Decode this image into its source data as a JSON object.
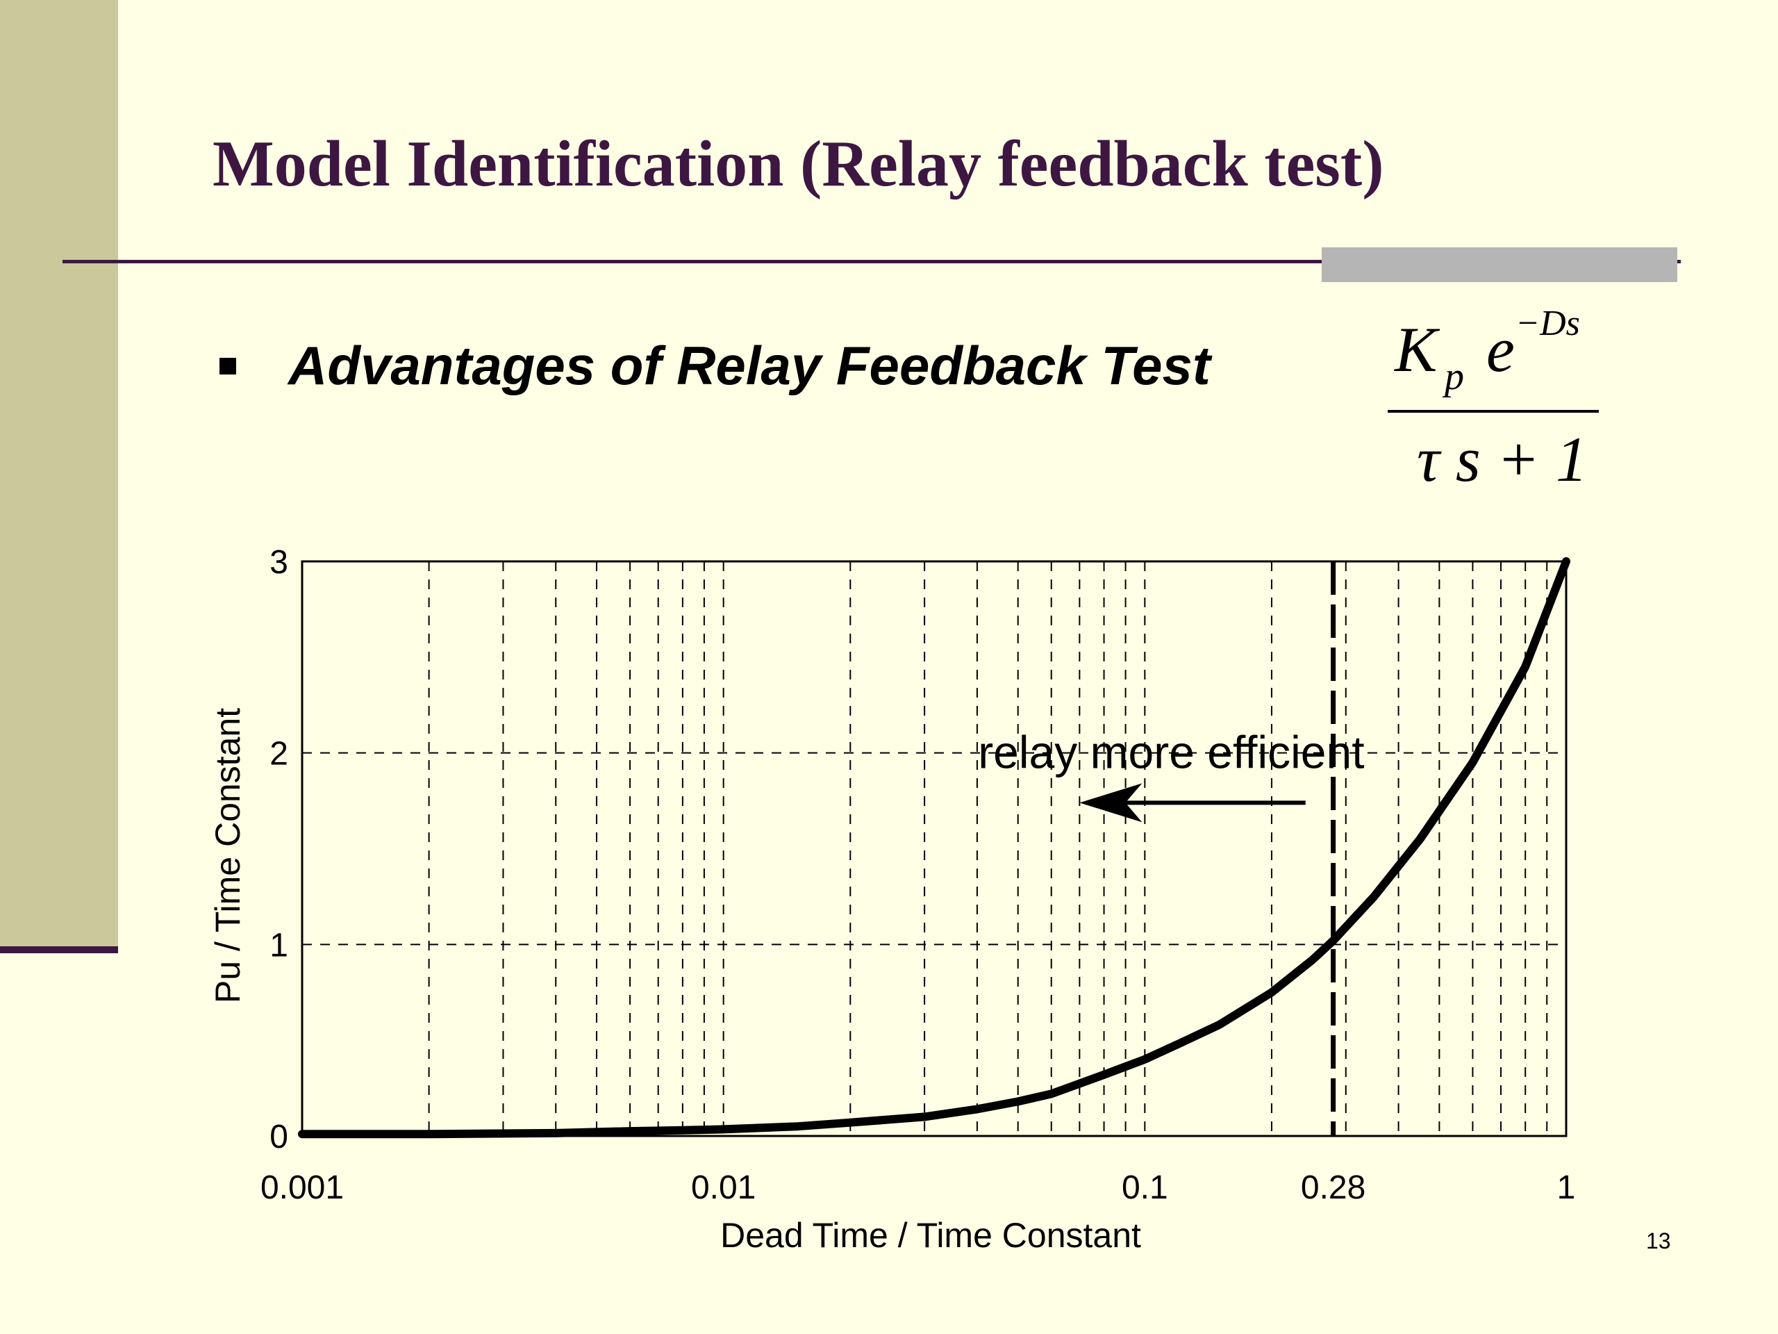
{
  "slide": {
    "title": "Model Identification (Relay feedback test)",
    "bullet": "Advantages of Relay Feedback Test",
    "page_number": "13",
    "colors": {
      "background": "#ffffe6",
      "sidebar": "#cbc89b",
      "accent": "#3d1741",
      "bar": "#b5b5b5"
    }
  },
  "formula": {
    "numerator_gain": "K",
    "gain_subscript": "p",
    "exp_base": "e",
    "exponent": "−Ds",
    "denominator": "τ s + 1"
  },
  "chart_data": {
    "type": "line",
    "xscale": "log",
    "xlim": [
      0.001,
      1
    ],
    "ylim": [
      0,
      3
    ],
    "xlabel": "Dead Time / Time Constant",
    "ylabel": "Pu / Time Constant",
    "xticks": [
      {
        "value": 0.001,
        "label": "0.001"
      },
      {
        "value": 0.01,
        "label": "0.01"
      },
      {
        "value": 0.1,
        "label": "0.1"
      },
      {
        "value": 0.28,
        "label": "0.28"
      },
      {
        "value": 1,
        "label": "1"
      }
    ],
    "yticks": [
      {
        "value": 0,
        "label": "0"
      },
      {
        "value": 1,
        "label": "1"
      },
      {
        "value": 2,
        "label": "2"
      },
      {
        "value": 3,
        "label": "3"
      }
    ],
    "grid": true,
    "series": [
      {
        "x": [
          0.001,
          0.002,
          0.004,
          0.006,
          0.008,
          0.01,
          0.015,
          0.02,
          0.03,
          0.04,
          0.05,
          0.06,
          0.08,
          0.1,
          0.12,
          0.15,
          0.2,
          0.25,
          0.28,
          0.35,
          0.45,
          0.6,
          0.8,
          1.0
        ],
        "y": [
          0.01,
          0.01,
          0.015,
          0.025,
          0.03,
          0.035,
          0.05,
          0.07,
          0.1,
          0.14,
          0.18,
          0.22,
          0.32,
          0.4,
          0.48,
          0.58,
          0.75,
          0.92,
          1.02,
          1.25,
          1.55,
          1.95,
          2.45,
          3.0
        ]
      }
    ],
    "reference_line": {
      "x": 0.28
    },
    "annotation": {
      "text": "relay more efficient",
      "x": 0.12,
      "y": 2.0,
      "arrow_from": 0.25,
      "arrow_to": 0.07,
      "arrow_y": 1.74
    }
  }
}
